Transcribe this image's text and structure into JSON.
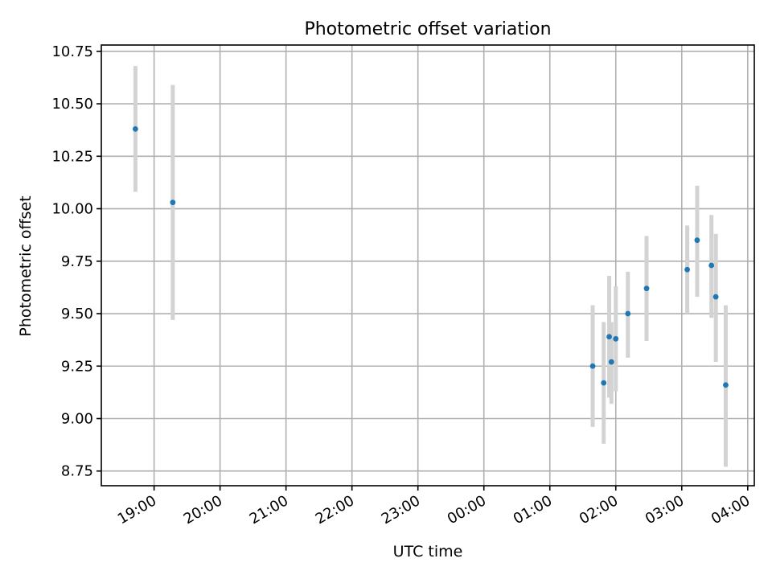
{
  "chart_data": {
    "type": "scatter",
    "title": "Photometric offset variation",
    "xlabel": "UTC time",
    "ylabel": "Photometric offset",
    "x_axis_type": "time",
    "xlim": [
      "18:12",
      "04:06"
    ],
    "ylim": [
      8.68,
      10.78
    ],
    "x_ticks": [
      "19:00",
      "20:00",
      "21:00",
      "22:00",
      "23:00",
      "00:00",
      "01:00",
      "02:00",
      "03:00",
      "04:00"
    ],
    "y_ticks": [
      "8.75",
      "9.00",
      "9.25",
      "9.50",
      "9.75",
      "10.00",
      "10.25",
      "10.50",
      "10.75"
    ],
    "grid": true,
    "marker_color": "#1f77b4",
    "errorbar_color": "#d3d3d3",
    "points": [
      {
        "x": "18:43",
        "y": 10.38,
        "yerr_low": 10.08,
        "yerr_high": 10.68
      },
      {
        "x": "19:17",
        "y": 10.03,
        "yerr_low": 9.47,
        "yerr_high": 10.59
      },
      {
        "x": "01:39",
        "y": 9.25,
        "yerr_low": 8.96,
        "yerr_high": 9.54
      },
      {
        "x": "01:49",
        "y": 9.17,
        "yerr_low": 8.88,
        "yerr_high": 9.46
      },
      {
        "x": "01:54",
        "y": 9.39,
        "yerr_low": 9.1,
        "yerr_high": 9.68
      },
      {
        "x": "01:56",
        "y": 9.27,
        "yerr_low": 9.07,
        "yerr_high": 9.46
      },
      {
        "x": "02:00",
        "y": 9.38,
        "yerr_low": 9.13,
        "yerr_high": 9.63
      },
      {
        "x": "02:11",
        "y": 9.5,
        "yerr_low": 9.29,
        "yerr_high": 9.7
      },
      {
        "x": "02:28",
        "y": 9.62,
        "yerr_low": 9.37,
        "yerr_high": 9.87
      },
      {
        "x": "03:05",
        "y": 9.71,
        "yerr_low": 9.5,
        "yerr_high": 9.92
      },
      {
        "x": "03:14",
        "y": 9.85,
        "yerr_low": 9.58,
        "yerr_high": 10.11
      },
      {
        "x": "03:27",
        "y": 9.73,
        "yerr_low": 9.48,
        "yerr_high": 9.97
      },
      {
        "x": "03:31",
        "y": 9.58,
        "yerr_low": 9.27,
        "yerr_high": 9.88
      },
      {
        "x": "03:40",
        "y": 9.16,
        "yerr_low": 8.77,
        "yerr_high": 9.54
      }
    ]
  }
}
